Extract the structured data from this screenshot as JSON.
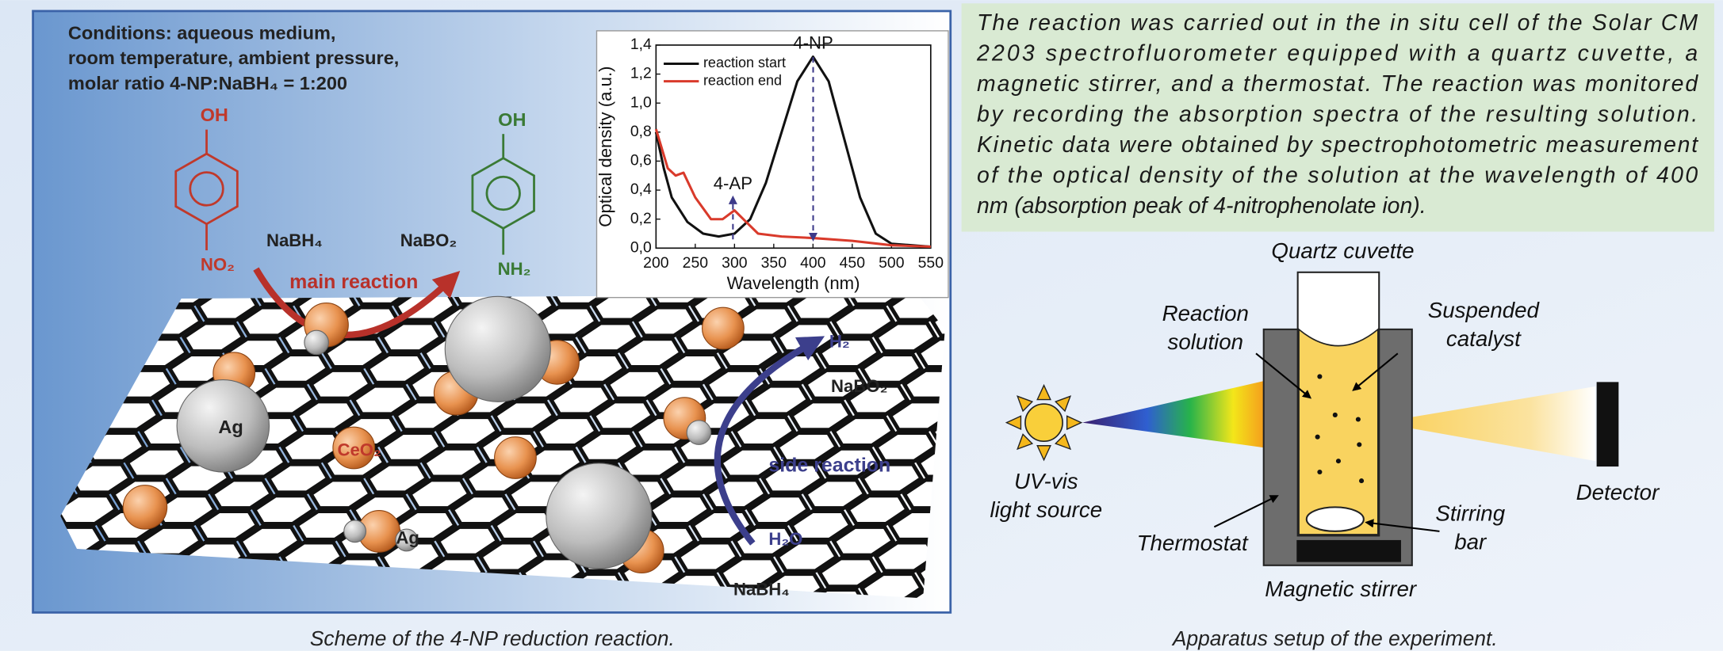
{
  "scheme": {
    "conditions": [
      "Conditions: aqueous medium,",
      "room temperature, ambient pressure,",
      "molar ratio 4-NP:NaBH₄ = 1:200"
    ],
    "reactant_oh": "OH",
    "reactant_no2": "NO₂",
    "product_oh": "OH",
    "product_nh2": "NH₂",
    "reagent_nabh4": "NaBH₄",
    "reagent_nabo2": "NaBO₂",
    "main_reaction": "main reaction",
    "side_h2": "H₂",
    "side_nabo2": "NaBO₂",
    "side_reaction": "side reaction",
    "side_h2o": "H₂O",
    "side_nabh4": "NaBH₄",
    "ag_label_1": "Ag",
    "ceo2_label": "CeO₂",
    "ag_label_2": "Ag",
    "caption": "Scheme of the 4-NP reduction reaction.",
    "inset_chart": {
      "type": "line",
      "x_label": "Wavelength (nm)",
      "y_label": "Optical density (a.u.)",
      "xlim": [
        200,
        550
      ],
      "ylim": [
        0,
        1.4
      ],
      "xticks": [
        200,
        250,
        300,
        350,
        400,
        450,
        500,
        550
      ],
      "yticks": [
        {
          "value": 0,
          "label": "0,0"
        },
        {
          "value": 0.2,
          "label": "0,2"
        },
        {
          "value": 0.4,
          "label": "0,4"
        },
        {
          "value": 0.6,
          "label": "0,6"
        },
        {
          "value": 0.8,
          "label": "0,8"
        },
        {
          "value": 1.0,
          "label": "1,0"
        },
        {
          "value": 1.2,
          "label": "1,2"
        },
        {
          "value": 1.4,
          "label": "1,4"
        }
      ],
      "annotations": [
        "4-NP",
        "4-AP"
      ],
      "series": [
        {
          "name": "reaction start",
          "color": "#111111",
          "x": [
            200,
            210,
            220,
            240,
            260,
            280,
            300,
            320,
            340,
            360,
            380,
            400,
            420,
            440,
            460,
            480,
            500,
            550
          ],
          "values": [
            0.8,
            0.55,
            0.35,
            0.18,
            0.1,
            0.08,
            0.1,
            0.2,
            0.45,
            0.8,
            1.15,
            1.32,
            1.15,
            0.75,
            0.35,
            0.1,
            0.03,
            0.01
          ]
        },
        {
          "name": "reaction end",
          "color": "#d93a2b",
          "x": [
            200,
            215,
            225,
            235,
            250,
            270,
            285,
            300,
            315,
            330,
            360,
            400,
            450,
            500,
            550
          ],
          "values": [
            0.82,
            0.55,
            0.5,
            0.52,
            0.35,
            0.2,
            0.2,
            0.26,
            0.18,
            0.1,
            0.08,
            0.07,
            0.05,
            0.02,
            0.01
          ]
        }
      ]
    }
  },
  "apparatus": {
    "description": [
      "The reaction was carried out in the in situ cell of the Solar CM",
      "2203 spectrofluorometer equipped with a quartz cuvette, a",
      "magnetic stirrer, and a thermostat. The reaction was monitored",
      "by recording the absorption spectra of the resulting solution.",
      "Kinetic data were obtained by spectrophotometric measurement",
      "of the optical density of the solution at the wavelength of 400",
      "nm (absorption peak of 4-nitrophenolate ion)."
    ],
    "quartz_cuvette": "Quartz cuvette",
    "reaction_solution": [
      "Reaction",
      "solution"
    ],
    "suspended_catalyst": [
      "Suspended",
      "catalyst"
    ],
    "light_source": [
      "UV-vis",
      "light source"
    ],
    "detector": "Detector",
    "stirring_bar": [
      "Stirring",
      "bar"
    ],
    "thermostat": "Thermostat",
    "magnetic_stirrer": "Magnetic stirrer",
    "caption": "Apparatus setup of the experiment."
  }
}
